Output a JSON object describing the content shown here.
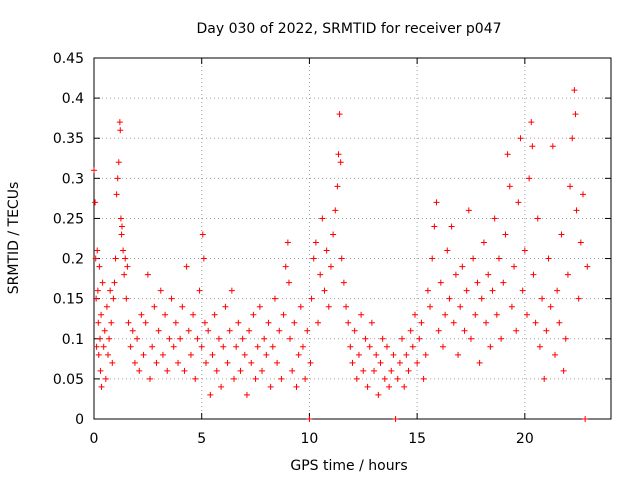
{
  "chart_data": {
    "type": "scatter",
    "title": "Day 030 of 2022, SRMTID for receiver p047",
    "xlabel": "GPS time / hours",
    "ylabel": "SRMTID / TECUs",
    "xlim": [
      0,
      24
    ],
    "ylim": [
      0,
      0.45
    ],
    "xticks": [
      0,
      5,
      10,
      15,
      20
    ],
    "yticks": [
      0,
      0.05,
      0.1,
      0.15,
      0.2,
      0.25,
      0.3,
      0.35,
      0.4,
      0.45
    ],
    "ytick_labels": [
      "0",
      "0.05",
      "0.1",
      "0.15",
      "0.2",
      "0.25",
      "0.3",
      "0.35",
      "0.4",
      "0.45"
    ],
    "grid": true,
    "marker": "+",
    "color": "#ff0000",
    "series": [
      {
        "name": "SRMTID",
        "points": [
          [
            0.0,
            0.31
          ],
          [
            0.05,
            0.27
          ],
          [
            0.08,
            0.2
          ],
          [
            0.1,
            0.15
          ],
          [
            0.12,
            0.09
          ],
          [
            0.15,
            0.21
          ],
          [
            0.18,
            0.16
          ],
          [
            0.2,
            0.12
          ],
          [
            0.22,
            0.08
          ],
          [
            0.25,
            0.19
          ],
          [
            0.28,
            0.1
          ],
          [
            0.3,
            0.06
          ],
          [
            0.33,
            0.13
          ],
          [
            0.35,
            0.04
          ],
          [
            0.4,
            0.17
          ],
          [
            0.45,
            0.09
          ],
          [
            0.5,
            0.11
          ],
          [
            0.55,
            0.05
          ],
          [
            0.6,
            0.14
          ],
          [
            0.65,
            0.08
          ],
          [
            0.7,
            0.1
          ],
          [
            0.75,
            0.16
          ],
          [
            0.8,
            0.12
          ],
          [
            0.85,
            0.07
          ],
          [
            0.9,
            0.15
          ],
          [
            0.95,
            0.17
          ],
          [
            1.0,
            0.2
          ],
          [
            1.05,
            0.28
          ],
          [
            1.1,
            0.3
          ],
          [
            1.15,
            0.32
          ],
          [
            1.2,
            0.37
          ],
          [
            1.22,
            0.36
          ],
          [
            1.25,
            0.25
          ],
          [
            1.28,
            0.23
          ],
          [
            1.3,
            0.24
          ],
          [
            1.35,
            0.21
          ],
          [
            1.4,
            0.18
          ],
          [
            1.45,
            0.2
          ],
          [
            1.5,
            0.15
          ],
          [
            1.55,
            0.19
          ],
          [
            1.6,
            0.12
          ],
          [
            1.7,
            0.09
          ],
          [
            1.8,
            0.11
          ],
          [
            1.9,
            0.07
          ],
          [
            2.0,
            0.1
          ],
          [
            2.1,
            0.06
          ],
          [
            2.2,
            0.13
          ],
          [
            2.3,
            0.08
          ],
          [
            2.4,
            0.12
          ],
          [
            2.5,
            0.18
          ],
          [
            2.6,
            0.05
          ],
          [
            2.7,
            0.09
          ],
          [
            2.8,
            0.14
          ],
          [
            2.9,
            0.07
          ],
          [
            3.0,
            0.11
          ],
          [
            3.1,
            0.16
          ],
          [
            3.2,
            0.08
          ],
          [
            3.3,
            0.13
          ],
          [
            3.4,
            0.06
          ],
          [
            3.5,
            0.1
          ],
          [
            3.6,
            0.15
          ],
          [
            3.7,
            0.09
          ],
          [
            3.8,
            0.12
          ],
          [
            3.9,
            0.07
          ],
          [
            4.0,
            0.1
          ],
          [
            4.1,
            0.14
          ],
          [
            4.2,
            0.06
          ],
          [
            4.3,
            0.19
          ],
          [
            4.4,
            0.11
          ],
          [
            4.5,
            0.08
          ],
          [
            4.6,
            0.13
          ],
          [
            4.7,
            0.05
          ],
          [
            4.8,
            0.1
          ],
          [
            4.9,
            0.16
          ],
          [
            5.0,
            0.09
          ],
          [
            5.05,
            0.23
          ],
          [
            5.1,
            0.2
          ],
          [
            5.15,
            0.12
          ],
          [
            5.2,
            0.07
          ],
          [
            5.3,
            0.11
          ],
          [
            5.4,
            0.03
          ],
          [
            5.5,
            0.08
          ],
          [
            5.6,
            0.13
          ],
          [
            5.7,
            0.06
          ],
          [
            5.8,
            0.1
          ],
          [
            5.9,
            0.04
          ],
          [
            6.0,
            0.09
          ],
          [
            6.1,
            0.14
          ],
          [
            6.2,
            0.07
          ],
          [
            6.3,
            0.11
          ],
          [
            6.4,
            0.16
          ],
          [
            6.5,
            0.05
          ],
          [
            6.6,
            0.09
          ],
          [
            6.7,
            0.12
          ],
          [
            6.8,
            0.06
          ],
          [
            6.9,
            0.1
          ],
          [
            7.0,
            0.08
          ],
          [
            7.1,
            0.03
          ],
          [
            7.2,
            0.11
          ],
          [
            7.3,
            0.07
          ],
          [
            7.4,
            0.13
          ],
          [
            7.5,
            0.05
          ],
          [
            7.6,
            0.09
          ],
          [
            7.7,
            0.14
          ],
          [
            7.8,
            0.06
          ],
          [
            7.9,
            0.1
          ],
          [
            8.0,
            0.08
          ],
          [
            8.1,
            0.12
          ],
          [
            8.2,
            0.04
          ],
          [
            8.3,
            0.09
          ],
          [
            8.4,
            0.15
          ],
          [
            8.5,
            0.07
          ],
          [
            8.6,
            0.11
          ],
          [
            8.7,
            0.05
          ],
          [
            8.8,
            0.13
          ],
          [
            8.9,
            0.19
          ],
          [
            9.0,
            0.22
          ],
          [
            9.05,
            0.17
          ],
          [
            9.1,
            0.1
          ],
          [
            9.2,
            0.06
          ],
          [
            9.3,
            0.12
          ],
          [
            9.4,
            0.04
          ],
          [
            9.5,
            0.08
          ],
          [
            9.6,
            0.14
          ],
          [
            9.7,
            0.09
          ],
          [
            9.8,
            0.05
          ],
          [
            9.9,
            0.11
          ],
          [
            10.0,
            0.0
          ],
          [
            10.05,
            0.07
          ],
          [
            10.1,
            0.15
          ],
          [
            10.2,
            0.2
          ],
          [
            10.3,
            0.22
          ],
          [
            10.4,
            0.12
          ],
          [
            10.5,
            0.18
          ],
          [
            10.6,
            0.25
          ],
          [
            10.7,
            0.16
          ],
          [
            10.8,
            0.21
          ],
          [
            10.9,
            0.14
          ],
          [
            11.0,
            0.19
          ],
          [
            11.1,
            0.23
          ],
          [
            11.2,
            0.26
          ],
          [
            11.3,
            0.29
          ],
          [
            11.35,
            0.33
          ],
          [
            11.4,
            0.38
          ],
          [
            11.45,
            0.32
          ],
          [
            11.5,
            0.2
          ],
          [
            11.6,
            0.17
          ],
          [
            11.7,
            0.14
          ],
          [
            11.8,
            0.12
          ],
          [
            11.9,
            0.09
          ],
          [
            12.0,
            0.07
          ],
          [
            12.1,
            0.11
          ],
          [
            12.2,
            0.05
          ],
          [
            12.3,
            0.08
          ],
          [
            12.4,
            0.13
          ],
          [
            12.5,
            0.06
          ],
          [
            12.6,
            0.1
          ],
          [
            12.7,
            0.04
          ],
          [
            12.8,
            0.09
          ],
          [
            12.9,
            0.12
          ],
          [
            13.0,
            0.06
          ],
          [
            13.1,
            0.08
          ],
          [
            13.2,
            0.03
          ],
          [
            13.3,
            0.07
          ],
          [
            13.4,
            0.1
          ],
          [
            13.5,
            0.05
          ],
          [
            13.6,
            0.09
          ],
          [
            13.7,
            0.04
          ],
          [
            13.8,
            0.06
          ],
          [
            13.9,
            0.08
          ],
          [
            14.0,
            0.0
          ],
          [
            14.1,
            0.05
          ],
          [
            14.2,
            0.07
          ],
          [
            14.3,
            0.1
          ],
          [
            14.4,
            0.04
          ],
          [
            14.5,
            0.08
          ],
          [
            14.6,
            0.06
          ],
          [
            14.7,
            0.11
          ],
          [
            14.8,
            0.09
          ],
          [
            14.9,
            0.13
          ],
          [
            15.0,
            0.07
          ],
          [
            15.1,
            0.1
          ],
          [
            15.2,
            0.12
          ],
          [
            15.3,
            0.05
          ],
          [
            15.4,
            0.08
          ],
          [
            15.5,
            0.16
          ],
          [
            15.6,
            0.14
          ],
          [
            15.7,
            0.2
          ],
          [
            15.8,
            0.24
          ],
          [
            15.9,
            0.27
          ],
          [
            16.0,
            0.11
          ],
          [
            16.1,
            0.17
          ],
          [
            16.2,
            0.09
          ],
          [
            16.3,
            0.13
          ],
          [
            16.4,
            0.21
          ],
          [
            16.5,
            0.15
          ],
          [
            16.6,
            0.24
          ],
          [
            16.7,
            0.12
          ],
          [
            16.8,
            0.18
          ],
          [
            16.9,
            0.08
          ],
          [
            17.0,
            0.14
          ],
          [
            17.1,
            0.19
          ],
          [
            17.2,
            0.11
          ],
          [
            17.3,
            0.16
          ],
          [
            17.4,
            0.26
          ],
          [
            17.5,
            0.1
          ],
          [
            17.6,
            0.2
          ],
          [
            17.7,
            0.13
          ],
          [
            17.8,
            0.17
          ],
          [
            17.9,
            0.07
          ],
          [
            18.0,
            0.15
          ],
          [
            18.1,
            0.22
          ],
          [
            18.2,
            0.12
          ],
          [
            18.3,
            0.18
          ],
          [
            18.4,
            0.09
          ],
          [
            18.5,
            0.16
          ],
          [
            18.6,
            0.25
          ],
          [
            18.7,
            0.13
          ],
          [
            18.8,
            0.2
          ],
          [
            18.9,
            0.1
          ],
          [
            19.0,
            0.17
          ],
          [
            19.1,
            0.23
          ],
          [
            19.2,
            0.33
          ],
          [
            19.3,
            0.29
          ],
          [
            19.4,
            0.14
          ],
          [
            19.5,
            0.19
          ],
          [
            19.6,
            0.11
          ],
          [
            19.7,
            0.27
          ],
          [
            19.8,
            0.35
          ],
          [
            19.9,
            0.16
          ],
          [
            20.0,
            0.21
          ],
          [
            20.1,
            0.13
          ],
          [
            20.2,
            0.3
          ],
          [
            20.3,
            0.37
          ],
          [
            20.35,
            0.34
          ],
          [
            20.4,
            0.18
          ],
          [
            20.5,
            0.12
          ],
          [
            20.6,
            0.25
          ],
          [
            20.7,
            0.09
          ],
          [
            20.8,
            0.15
          ],
          [
            20.9,
            0.05
          ],
          [
            21.0,
            0.11
          ],
          [
            21.1,
            0.2
          ],
          [
            21.2,
            0.14
          ],
          [
            21.3,
            0.34
          ],
          [
            21.4,
            0.08
          ],
          [
            21.5,
            0.16
          ],
          [
            21.6,
            0.12
          ],
          [
            21.7,
            0.23
          ],
          [
            21.8,
            0.06
          ],
          [
            21.9,
            0.1
          ],
          [
            22.0,
            0.18
          ],
          [
            22.1,
            0.29
          ],
          [
            22.2,
            0.35
          ],
          [
            22.3,
            0.41
          ],
          [
            22.35,
            0.38
          ],
          [
            22.4,
            0.26
          ],
          [
            22.5,
            0.15
          ],
          [
            22.6,
            0.22
          ],
          [
            22.7,
            0.28
          ],
          [
            22.8,
            0.0
          ],
          [
            22.9,
            0.19
          ]
        ]
      }
    ]
  }
}
